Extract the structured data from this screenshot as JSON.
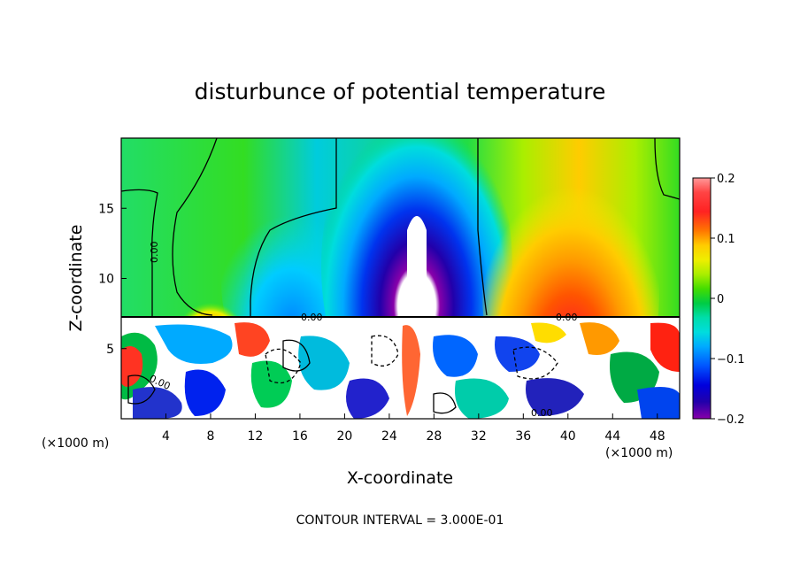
{
  "chart_data": {
    "type": "heatmap",
    "title": "disturbunce of potential temperature",
    "xlabel": "X-coordinate",
    "ylabel": "Z-coordinate",
    "x_unit_left": "(×1000 m)",
    "x_unit_right": "(×1000 m)",
    "footer": "CONTOUR INTERVAL = 3.000E-01",
    "xlim": [
      0,
      50
    ],
    "ylim": [
      0,
      20
    ],
    "x_ticks": [
      4,
      8,
      12,
      16,
      20,
      24,
      28,
      32,
      36,
      40,
      44,
      48
    ],
    "x_tick_labels": [
      "4",
      "8",
      "12",
      "16",
      "20",
      "24",
      "28",
      "32",
      "36",
      "40",
      "44",
      "48"
    ],
    "y_ticks": [
      5,
      10,
      15
    ],
    "y_tick_labels": [
      "5",
      "10",
      "15"
    ],
    "colorbar": {
      "range": [
        -0.2,
        0.2
      ],
      "ticks": [
        0.2,
        0.1,
        0,
        -0.1,
        -0.2
      ],
      "tick_labels": [
        "0.2",
        "0.1",
        "0",
        "−0.1",
        "−0.2"
      ]
    },
    "contour_labels": [
      "0.00",
      "0.00",
      "0.00",
      "0.00",
      "0.00"
    ],
    "features": {
      "upper_layer_zmin": 7.5,
      "cold_anomaly_x": 26.5,
      "cold_anomaly_value": -0.2,
      "warm_anomaly_x": 40,
      "warm_anomaly_value": 0.2,
      "warm_small_x": 8,
      "boundary_z": 7.5
    }
  },
  "colors": {
    "scale": [
      "#8800aa",
      "#2200aa",
      "#0000ee",
      "#0066ff",
      "#00aaff",
      "#00dddd",
      "#00ddaa",
      "#00cc44",
      "#22dd00",
      "#66ee00",
      "#aaee00",
      "#eeee00",
      "#ffcc00",
      "#ff9900",
      "#ff5500",
      "#ff2222",
      "#ff4444",
      "#ff9999"
    ]
  }
}
